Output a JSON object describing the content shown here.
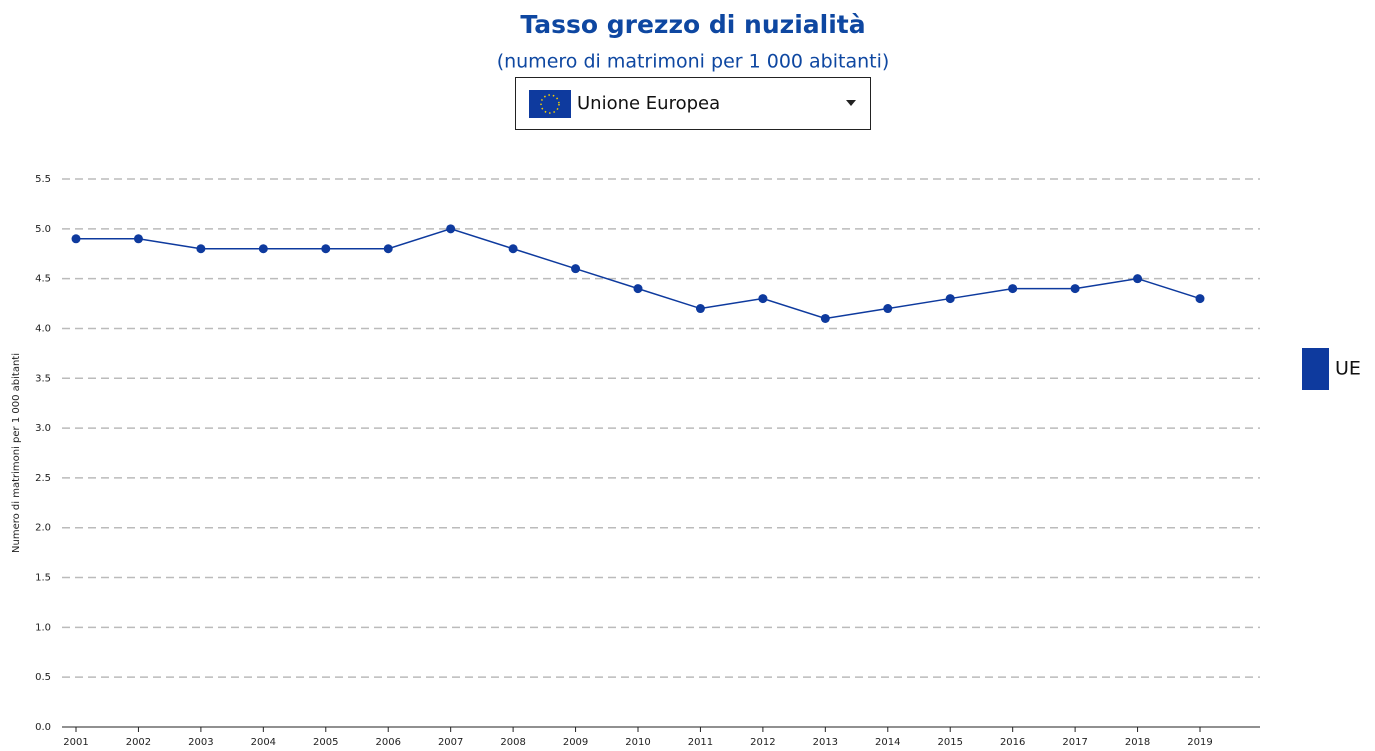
{
  "dropdown": {
    "selected": "Unione Europea"
  },
  "chart_data": {
    "type": "line",
    "title": "Tasso grezzo di nuzialità",
    "subtitle": "(numero di matrimoni per 1 000 abitanti)",
    "y_label": "Numero di matrimoni per 1 000 abitanti",
    "categories": [
      "2001",
      "2002",
      "2003",
      "2004",
      "2005",
      "2006",
      "2007",
      "2008",
      "2009",
      "2010",
      "2011",
      "2012",
      "2013",
      "2014",
      "2015",
      "2016",
      "2017",
      "2018",
      "2019"
    ],
    "series": [
      {
        "name": "UE",
        "color": "#0e3a9e",
        "values": [
          4.9,
          4.9,
          4.8,
          4.8,
          4.8,
          4.8,
          5.0,
          4.8,
          4.6,
          4.4,
          4.2,
          4.3,
          4.1,
          4.2,
          4.3,
          4.4,
          4.4,
          4.5,
          4.3
        ]
      }
    ],
    "ylim": [
      0,
      5.5
    ],
    "yticks": [
      {
        "value": 0,
        "label": "0.0"
      },
      0.5,
      {
        "value": 1,
        "label": "1.0"
      },
      1.5,
      {
        "value": 2,
        "label": "2.0"
      },
      2.5,
      {
        "value": 3,
        "label": "3.0"
      },
      3.5,
      {
        "value": 4,
        "label": "4.0"
      },
      4.5,
      {
        "value": 5,
        "label": "5.0"
      },
      5.5
    ],
    "grid": true,
    "legend": "right"
  }
}
